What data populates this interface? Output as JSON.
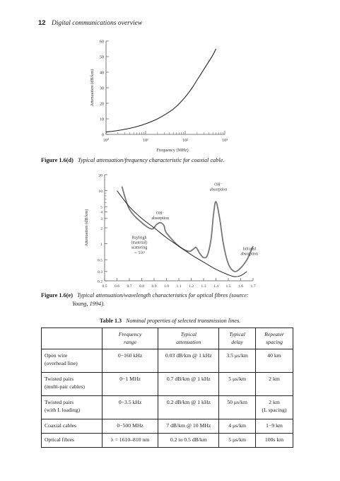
{
  "running_head": {
    "page_number": "12",
    "title": "Digital communications overview"
  },
  "figure_d": {
    "label": "Figure 1.6(d)",
    "caption": "Typical attenuation/frequency characteristic for coaxial cable.",
    "chart_data": {
      "type": "line",
      "xlabel": "Frequency (MHz)",
      "ylabel": "Attenuation (dB/km)",
      "x_scale": "log",
      "xlim": [
        1,
        1000
      ],
      "ylim": [
        0,
        60
      ],
      "xticks": [
        "10⁰",
        "10¹",
        "10²",
        "10³"
      ],
      "yticks": [
        "0",
        "10",
        "20",
        "30",
        "40",
        "50",
        "60"
      ],
      "series": [
        {
          "x": [
            1,
            2,
            5,
            10,
            20,
            40,
            60,
            100,
            150,
            200,
            300,
            400,
            500,
            600
          ],
          "y": [
            1.5,
            2.5,
            4.5,
            6.8,
            10,
            14.5,
            18,
            24,
            30,
            35,
            42,
            47,
            51,
            55
          ]
        }
      ]
    }
  },
  "figure_e": {
    "label": "Figure 1.6(e)",
    "caption": "Typical attenuation/wavelength characteristics for optical fibres (source:",
    "caption_cont": "Young, 1994).",
    "chart_data": {
      "type": "line",
      "xlabel": "Wavelength (μm)",
      "ylabel": "Attenuation (dB/km)",
      "y_scale": "log",
      "xlim": [
        0.5,
        1.7
      ],
      "ylim": [
        0.2,
        20
      ],
      "xticks": [
        "0.5",
        "0.6",
        "0.7",
        "0.8",
        "0.9",
        "1.0",
        "1.1",
        "1.2",
        "1.3",
        "1.4",
        "1.5",
        "1.6",
        "1.7"
      ],
      "yticks": [
        "0.2",
        "0.3",
        "0.5",
        "1",
        "2",
        "3",
        "4",
        "5",
        "10",
        "20"
      ],
      "annotations": {
        "oh1": [
          "OH⁻",
          "absorption"
        ],
        "oh2": [
          "OH⁻",
          "absorption"
        ],
        "rayleigh": [
          "Rayleigh",
          "(material)",
          "scattering",
          "∼ 1/λ⁴"
        ],
        "infrared": [
          "Infrared",
          "absorption"
        ]
      },
      "series": [
        {
          "x": [
            0.64,
            0.7,
            0.8,
            0.88,
            0.92,
            0.95,
            0.98,
            1.0,
            1.1,
            1.18,
            1.22,
            1.24,
            1.27,
            1.3,
            1.33,
            1.36,
            1.38,
            1.4,
            1.43,
            1.46,
            1.5,
            1.55,
            1.6,
            1.65,
            1.7
          ],
          "y": [
            12,
            4.5,
            2.5,
            1.9,
            2.3,
            2.5,
            2.2,
            1.6,
            0.9,
            0.72,
            0.8,
            0.85,
            0.65,
            0.55,
            0.6,
            1.2,
            3.5,
            6.2,
            3,
            1.0,
            0.42,
            0.3,
            0.35,
            0.5,
            0.9
          ]
        },
        {
          "x": [
            0.6,
            0.7,
            0.8,
            0.9,
            1.0,
            1.1,
            1.2,
            1.3,
            1.4,
            1.5,
            1.55,
            1.6,
            1.65
          ],
          "y": [
            10,
            5,
            3,
            2,
            1.3,
            0.9,
            0.62,
            0.45,
            0.33,
            0.26,
            0.24,
            0.25,
            0.3
          ]
        }
      ]
    }
  },
  "table": {
    "label": "Table 1.3",
    "caption": "Nominal properties of selected transmission lines.",
    "headers": [
      [
        "",
        ""
      ],
      [
        "Frequency",
        "range"
      ],
      [
        "Typical",
        "attenuation"
      ],
      [
        "Typical",
        "delay"
      ],
      [
        "Repeater",
        "spacing"
      ]
    ],
    "rows": [
      {
        "name": [
          "Open wire",
          "(overhead line)"
        ],
        "freq": "0−160 kHz",
        "atten": "0.03 dB/km @ 1 kHz",
        "delay": "3.5 μs/km",
        "spacing": [
          "40 km",
          ""
        ]
      },
      {
        "name": [
          "Twisted pairs",
          "(multi-pair cables)"
        ],
        "freq": "0−1 MHz",
        "atten": "0.7 dB/km @ 1 kHz",
        "delay": "5 μs/km",
        "spacing": [
          "2 km",
          ""
        ]
      },
      {
        "name": [
          "Twisted pairs",
          "(with L loading)"
        ],
        "freq": "0−3.5 kHz",
        "atten": "0.2 dB/km @ 1 kHz",
        "delay": "50 μs/km",
        "spacing": [
          "2 km",
          "(L spacing)"
        ]
      },
      {
        "name": [
          "Coaxial cables",
          ""
        ],
        "freq": "0−500 MHz",
        "atten": "7 dB/km @ 10 MHz",
        "delay": "4 μs/km",
        "spacing": [
          "1−9 km",
          ""
        ]
      },
      {
        "name": [
          "Optical fibres",
          ""
        ],
        "freq": "λ = 1610–810 nm",
        "atten": "0.2 to 0.5 dB/km",
        "delay": "5 μs/km",
        "spacing": [
          "100s km",
          ""
        ]
      }
    ]
  }
}
